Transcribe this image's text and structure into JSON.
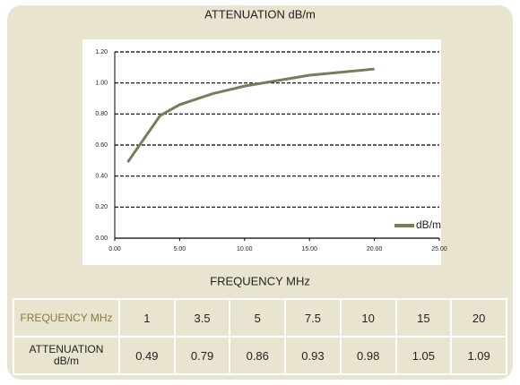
{
  "chart_data": {
    "type": "line",
    "title": "ATTENUATION dB/m",
    "xlabel": "FREQUENCY MHz",
    "x": [
      1,
      3.5,
      5,
      7.5,
      10,
      15,
      20
    ],
    "series": [
      {
        "name": "dB/m",
        "color": "#7b7a5a",
        "values": [
          0.49,
          0.79,
          0.86,
          0.93,
          0.98,
          1.05,
          1.09
        ]
      }
    ],
    "xlim": [
      0,
      25
    ],
    "xticks": [
      {
        "value": 0,
        "label": "0.00"
      },
      {
        "value": 5,
        "label": "5.00"
      },
      {
        "value": 10,
        "label": "10.00"
      },
      {
        "value": 15,
        "label": "15.00"
      },
      {
        "value": 20,
        "label": "20.00"
      },
      {
        "value": 25,
        "label": "25.00"
      }
    ],
    "ylim": [
      0,
      1.2
    ],
    "yticks": [
      {
        "value": 0,
        "label": "0.00"
      },
      {
        "value": 0.2,
        "label": "0.20"
      },
      {
        "value": 0.4,
        "label": "0.40"
      },
      {
        "value": 0.6,
        "label": "0.60"
      },
      {
        "value": 0.8,
        "label": "0.80"
      },
      {
        "value": 1,
        "label": "1.00"
      },
      {
        "value": 1.2,
        "label": "1.20"
      }
    ],
    "grid": true,
    "legend": "lower right"
  },
  "table": {
    "rows": [
      [
        "FREQUENCY MHz",
        "1",
        "3.5",
        "5",
        "7.5",
        "10",
        "15",
        "20"
      ],
      [
        "ATTENUATION dB/m",
        "0.49",
        "0.79",
        "0.86",
        "0.93",
        "0.98",
        "1.05",
        "1.09"
      ]
    ]
  }
}
